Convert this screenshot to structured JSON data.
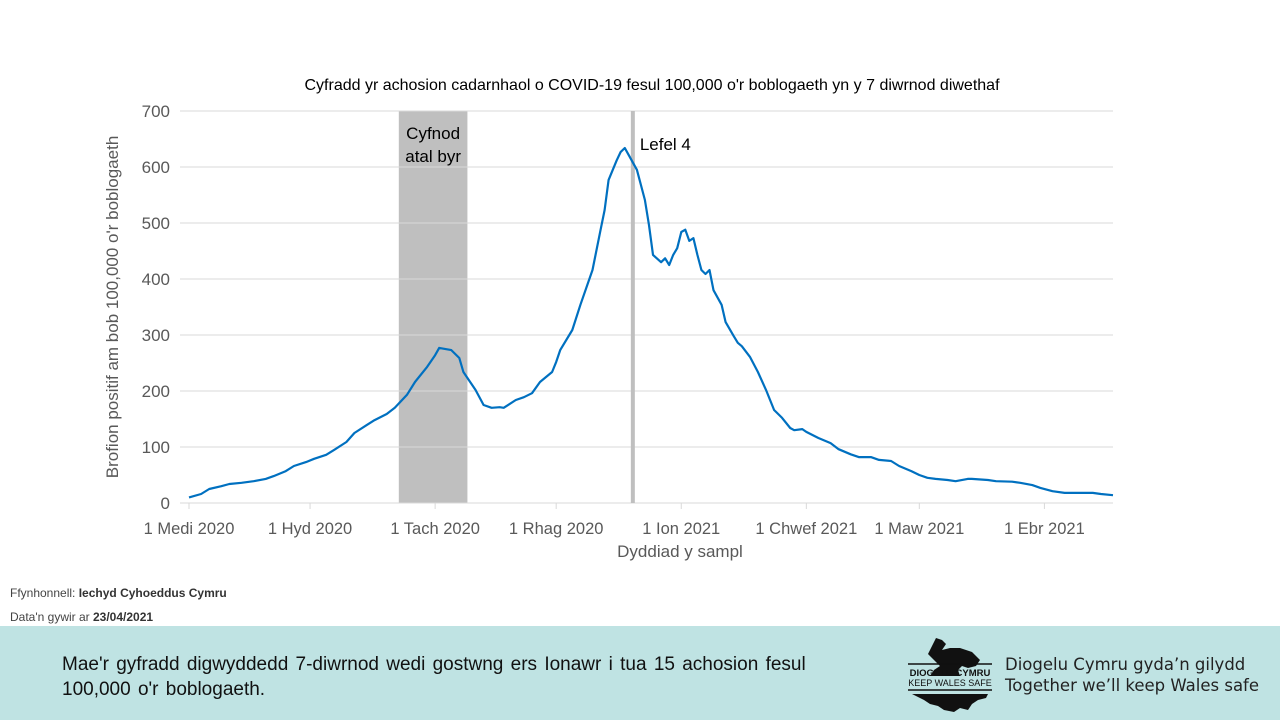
{
  "chart_data": {
    "type": "line",
    "title": "Cyfradd yr achosion cadarnhaol o COVID-19 fesul 100,000 o'r boblogaeth yn y 7 diwrnod diwethaf",
    "xlabel": "Dyddiad y sampl",
    "ylabel": "Brofion positif am bob 100,000 o'r boblogaeth",
    "ylim": [
      0,
      700
    ],
    "yticks": [
      0,
      100,
      200,
      300,
      400,
      500,
      600,
      700
    ],
    "xlim": [
      "2020-09-01",
      "2021-04-18"
    ],
    "xticks": [
      {
        "date": "2020-09-01",
        "label": "1 Medi 2020"
      },
      {
        "date": "2020-10-01",
        "label": "1 Hyd 2020"
      },
      {
        "date": "2020-11-01",
        "label": "1 Tach 2020"
      },
      {
        "date": "2020-12-01",
        "label": "1 Rhag 2020"
      },
      {
        "date": "2021-01-01",
        "label": "1 Ion 2021"
      },
      {
        "date": "2021-02-01",
        "label": "1 Chwef 2021"
      },
      {
        "date": "2021-03-01",
        "label": "1 Maw 2021"
      },
      {
        "date": "2021-04-01",
        "label": "1 Ebr 2021"
      }
    ],
    "grid": true,
    "line_color": "#0070c0",
    "annotations": [
      {
        "type": "band",
        "start": "2020-10-23",
        "end": "2020-11-09",
        "label_lines": [
          "Cyfnod",
          "atal byr"
        ],
        "color": "#bfbfbf"
      },
      {
        "type": "vline",
        "date": "2020-12-20",
        "label": "Lefel 4",
        "color": "#bfbfbf"
      }
    ],
    "x": [
      "2020-09-01",
      "2020-09-04",
      "2020-09-06",
      "2020-09-09",
      "2020-09-11",
      "2020-09-14",
      "2020-09-17",
      "2020-09-20",
      "2020-09-22",
      "2020-09-25",
      "2020-09-27",
      "2020-09-30",
      "2020-10-02",
      "2020-10-05",
      "2020-10-07",
      "2020-10-10",
      "2020-10-12",
      "2020-10-15",
      "2020-10-17",
      "2020-10-20",
      "2020-10-22",
      "2020-10-25",
      "2020-10-27",
      "2020-10-30",
      "2020-11-01",
      "2020-11-02",
      "2020-11-05",
      "2020-11-07",
      "2020-11-08",
      "2020-11-11",
      "2020-11-13",
      "2020-11-15",
      "2020-11-17",
      "2020-11-18",
      "2020-11-21",
      "2020-11-23",
      "2020-11-25",
      "2020-11-27",
      "2020-11-30",
      "2020-12-01",
      "2020-12-02",
      "2020-12-05",
      "2020-12-07",
      "2020-12-10",
      "2020-12-12",
      "2020-12-13",
      "2020-12-14",
      "2020-12-16",
      "2020-12-17",
      "2020-12-18",
      "2020-12-19",
      "2020-12-21",
      "2020-12-22",
      "2020-12-23",
      "2020-12-24",
      "2020-12-25",
      "2020-12-27",
      "2020-12-28",
      "2020-12-29",
      "2020-12-30",
      "2020-12-31",
      "2021-01-01",
      "2021-01-02",
      "2021-01-03",
      "2021-01-04",
      "2021-01-05",
      "2021-01-06",
      "2021-01-07",
      "2021-01-08",
      "2021-01-09",
      "2021-01-11",
      "2021-01-12",
      "2021-01-14",
      "2021-01-15",
      "2021-01-16",
      "2021-01-18",
      "2021-01-20",
      "2021-01-22",
      "2021-01-24",
      "2021-01-26",
      "2021-01-28",
      "2021-01-29",
      "2021-01-31",
      "2021-02-01",
      "2021-02-04",
      "2021-02-07",
      "2021-02-09",
      "2021-02-12",
      "2021-02-14",
      "2021-02-17",
      "2021-02-19",
      "2021-02-22",
      "2021-02-24",
      "2021-02-27",
      "2021-03-01",
      "2021-03-03",
      "2021-03-05",
      "2021-03-08",
      "2021-03-10",
      "2021-03-13",
      "2021-03-14",
      "2021-03-18",
      "2021-03-20",
      "2021-03-24",
      "2021-03-26",
      "2021-03-29",
      "2021-03-31",
      "2021-04-03",
      "2021-04-06",
      "2021-04-13",
      "2021-04-15",
      "2021-04-18"
    ],
    "values": [
      10,
      16,
      25,
      30,
      34,
      36,
      39,
      43,
      48,
      57,
      66,
      73,
      79,
      86,
      95,
      109,
      125,
      139,
      148,
      159,
      170,
      193,
      216,
      243,
      264,
      277,
      273,
      259,
      234,
      202,
      175,
      170,
      171,
      170,
      184,
      189,
      196,
      216,
      234,
      252,
      273,
      309,
      354,
      416,
      488,
      523,
      577,
      612,
      627,
      634,
      621,
      595,
      568,
      541,
      496,
      443,
      430,
      437,
      425,
      443,
      455,
      484,
      488,
      468,
      473,
      443,
      416,
      409,
      416,
      380,
      354,
      323,
      298,
      286,
      280,
      261,
      234,
      202,
      166,
      152,
      134,
      130,
      132,
      127,
      116,
      107,
      96,
      87,
      82,
      82,
      77,
      75,
      66,
      57,
      50,
      45,
      43,
      41,
      39,
      43,
      43,
      41,
      39,
      38,
      36,
      32,
      27,
      21,
      18,
      18,
      16,
      14
    ]
  },
  "source": {
    "label": "Ffynhonnell:",
    "value": "Iechyd Cyhoeddus Cymru"
  },
  "updated": {
    "label": "Data'n gywir ar",
    "value": "23/04/2021"
  },
  "footer": {
    "message": "Mae'r gyfradd digwyddedd 7-diwrnod wedi gostwng ers Ionawr i tua 15 achosion fesul 100,000 o'r boblogaeth.",
    "logo_text": [
      "DIOGELU CYMRU",
      "KEEP WALES SAFE"
    ],
    "slogan_cy": "Diogelu Cymru gyda’n gilydd",
    "slogan_en": "Together we’ll keep Wales safe",
    "background": "#bfe3e3"
  }
}
